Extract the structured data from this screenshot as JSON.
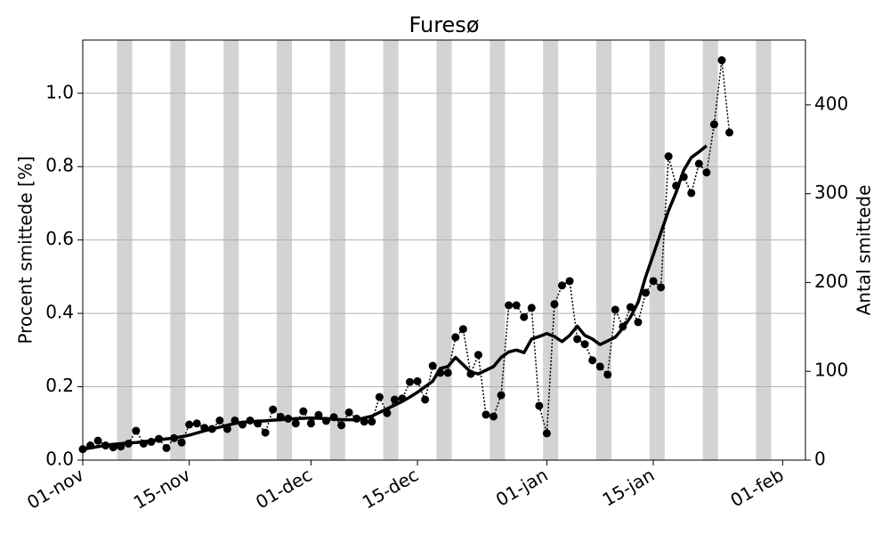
{
  "chart_data": {
    "type": "line",
    "title": "Furesø",
    "ylabel": "Procent smittede [%]",
    "y2label": "Antal smittede",
    "x": [
      "11-01",
      "11-02",
      "11-03",
      "11-04",
      "11-05",
      "11-06",
      "11-07",
      "11-08",
      "11-09",
      "11-10",
      "11-11",
      "11-12",
      "11-13",
      "11-14",
      "11-15",
      "11-16",
      "11-17",
      "11-18",
      "11-19",
      "11-20",
      "11-21",
      "11-22",
      "11-23",
      "11-24",
      "11-25",
      "11-26",
      "11-27",
      "11-28",
      "11-29",
      "11-30",
      "12-01",
      "12-02",
      "12-03",
      "12-04",
      "12-05",
      "12-06",
      "12-07",
      "12-08",
      "12-09",
      "12-10",
      "12-11",
      "12-12",
      "12-13",
      "12-14",
      "12-15",
      "12-16",
      "12-17",
      "12-18",
      "12-19",
      "12-20",
      "12-21",
      "12-22",
      "12-23",
      "12-24",
      "12-25",
      "12-26",
      "12-27",
      "12-28",
      "12-29",
      "12-30",
      "12-31",
      "01-01",
      "01-02",
      "01-03",
      "01-04",
      "01-05",
      "01-06",
      "01-07",
      "01-08",
      "01-09",
      "01-10",
      "01-11",
      "01-12",
      "01-13",
      "01-14",
      "01-15",
      "01-16",
      "01-17",
      "01-18",
      "01-19",
      "01-20",
      "01-21",
      "01-22",
      "01-23",
      "01-24",
      "01-25"
    ],
    "series": [
      {
        "color": "#000000",
        "marker": true,
        "linestyle": "dotted",
        "values": [
          0.03,
          0.04,
          0.053,
          0.04,
          0.035,
          0.037,
          0.045,
          0.08,
          0.045,
          0.05,
          0.058,
          0.033,
          0.06,
          0.048,
          0.097,
          0.1,
          0.088,
          0.085,
          0.108,
          0.085,
          0.108,
          0.097,
          0.108,
          0.1,
          0.075,
          0.138,
          0.118,
          0.113,
          0.1,
          0.133,
          0.1,
          0.123,
          0.107,
          0.117,
          0.095,
          0.13,
          0.113,
          0.105,
          0.105,
          0.172,
          0.128,
          0.165,
          0.168,
          0.213,
          0.215,
          0.165,
          0.257,
          0.238,
          0.238,
          0.335,
          0.357,
          0.235,
          0.287,
          0.124,
          0.119,
          0.177,
          0.422,
          0.422,
          0.39,
          0.415,
          0.148,
          0.073,
          0.425,
          0.476,
          0.488,
          0.33,
          0.316,
          0.272,
          0.255,
          0.233,
          0.41,
          0.364,
          0.417,
          0.376,
          0.456,
          0.488,
          0.471,
          0.828,
          0.748,
          0.772,
          0.728,
          0.808,
          0.784,
          0.915,
          1.09,
          0.893
        ]
      },
      {
        "color": "#000000",
        "marker": false,
        "linestyle": "solid",
        "values": [
          0.03,
          0.033,
          0.037,
          0.04,
          0.043,
          0.045,
          0.047,
          0.048,
          0.05,
          0.053,
          0.055,
          0.058,
          0.06,
          0.064,
          0.068,
          0.074,
          0.08,
          0.085,
          0.09,
          0.095,
          0.1,
          0.103,
          0.105,
          0.106,
          0.107,
          0.109,
          0.11,
          0.112,
          0.113,
          0.114,
          0.115,
          0.114,
          0.113,
          0.112,
          0.11,
          0.11,
          0.11,
          0.115,
          0.12,
          0.13,
          0.14,
          0.15,
          0.16,
          0.172,
          0.185,
          0.2,
          0.215,
          0.25,
          0.255,
          0.28,
          0.26,
          0.24,
          0.235,
          0.245,
          0.255,
          0.28,
          0.295,
          0.3,
          0.293,
          0.33,
          0.337,
          0.345,
          0.337,
          0.323,
          0.34,
          0.365,
          0.34,
          0.33,
          0.315,
          0.325,
          0.335,
          0.36,
          0.39,
          0.43,
          0.5,
          0.56,
          0.62,
          0.68,
          0.73,
          0.79,
          0.825,
          0.84,
          0.857,
          null,
          null,
          null
        ]
      }
    ],
    "xlim": [
      "11-01",
      "02-04"
    ],
    "xticks": [
      {
        "value": "11-01",
        "label": "01-nov"
      },
      {
        "value": "11-15",
        "label": "15-nov"
      },
      {
        "value": "12-01",
        "label": "01-dec"
      },
      {
        "value": "12-15",
        "label": "15-dec"
      },
      {
        "value": "01-01",
        "label": "01-jan"
      },
      {
        "value": "01-15",
        "label": "15-jan"
      },
      {
        "value": "02-01",
        "label": "01-feb"
      }
    ],
    "ylim": [
      0,
      1.145
    ],
    "yticks": [
      {
        "value": 0,
        "label": "0.0"
      },
      0.2,
      0.4,
      0.6,
      0.8,
      {
        "value": 1,
        "label": "1.0"
      }
    ],
    "y2lim": [
      0,
      473
    ],
    "y2ticks": [
      0,
      100,
      200,
      300,
      400
    ],
    "grid": "y",
    "shaded": [
      [
        "11-06",
        "11-07"
      ],
      [
        "11-13",
        "11-14"
      ],
      [
        "11-20",
        "11-21"
      ],
      [
        "11-27",
        "11-28"
      ],
      [
        "12-04",
        "12-05"
      ],
      [
        "12-11",
        "12-12"
      ],
      [
        "12-18",
        "12-19"
      ],
      [
        "12-25",
        "12-26"
      ],
      [
        "01-01",
        "01-02"
      ],
      [
        "01-08",
        "01-09"
      ],
      [
        "01-15",
        "01-16"
      ],
      [
        "01-22",
        "01-23"
      ],
      [
        "01-29",
        "01-30"
      ]
    ],
    "shade_color": "#d3d3d3"
  }
}
